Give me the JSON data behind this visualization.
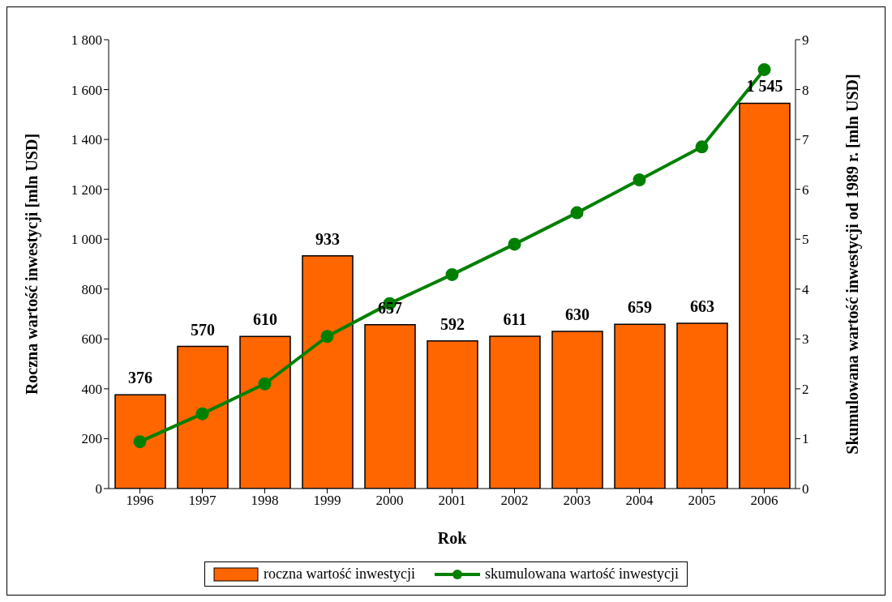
{
  "chart_data": {
    "type": "bar",
    "xlabel": "Rok",
    "ylabel": "Roczna wartość inwestycji [mln USD]",
    "y2label": "Skumulowana wartość inwestycji od 1989 r. [mln USD]",
    "categories": [
      "1996",
      "1997",
      "1998",
      "1999",
      "2000",
      "2001",
      "2002",
      "2003",
      "2004",
      "2005",
      "2006"
    ],
    "series": [
      {
        "name": "roczna wartość inwestycji",
        "color": "#ff6600",
        "values": [
          376,
          570,
          610,
          933,
          657,
          592,
          611,
          630,
          659,
          663,
          1545
        ],
        "value_labels": [
          "376",
          "570",
          "610",
          "933",
          "657",
          "592",
          "611",
          "630",
          "659",
          "663",
          "1 545"
        ]
      },
      {
        "name": "skumulowana wartość inwestycji",
        "type": "line",
        "axis": "y2",
        "color": "#008000",
        "marker": "circle",
        "values": [
          0.94,
          1.5,
          2.1,
          3.05,
          3.71,
          4.29,
          4.9,
          5.53,
          6.19,
          6.85,
          8.4
        ]
      }
    ],
    "ylim": [
      0,
      1800
    ],
    "yticks": [
      0,
      200,
      400,
      600,
      800,
      {
        "value": 1000,
        "label": "1 000"
      },
      {
        "value": 1200,
        "label": "1 200"
      },
      {
        "value": 1400,
        "label": "1 400"
      },
      {
        "value": 1600,
        "label": "1 600"
      },
      {
        "value": 1800,
        "label": "1 800"
      }
    ],
    "y2lim": [
      0,
      9
    ],
    "y2ticks": [
      0,
      1,
      2,
      3,
      4,
      5,
      6,
      7,
      8,
      9
    ],
    "grid": false,
    "legend": "bottom"
  }
}
